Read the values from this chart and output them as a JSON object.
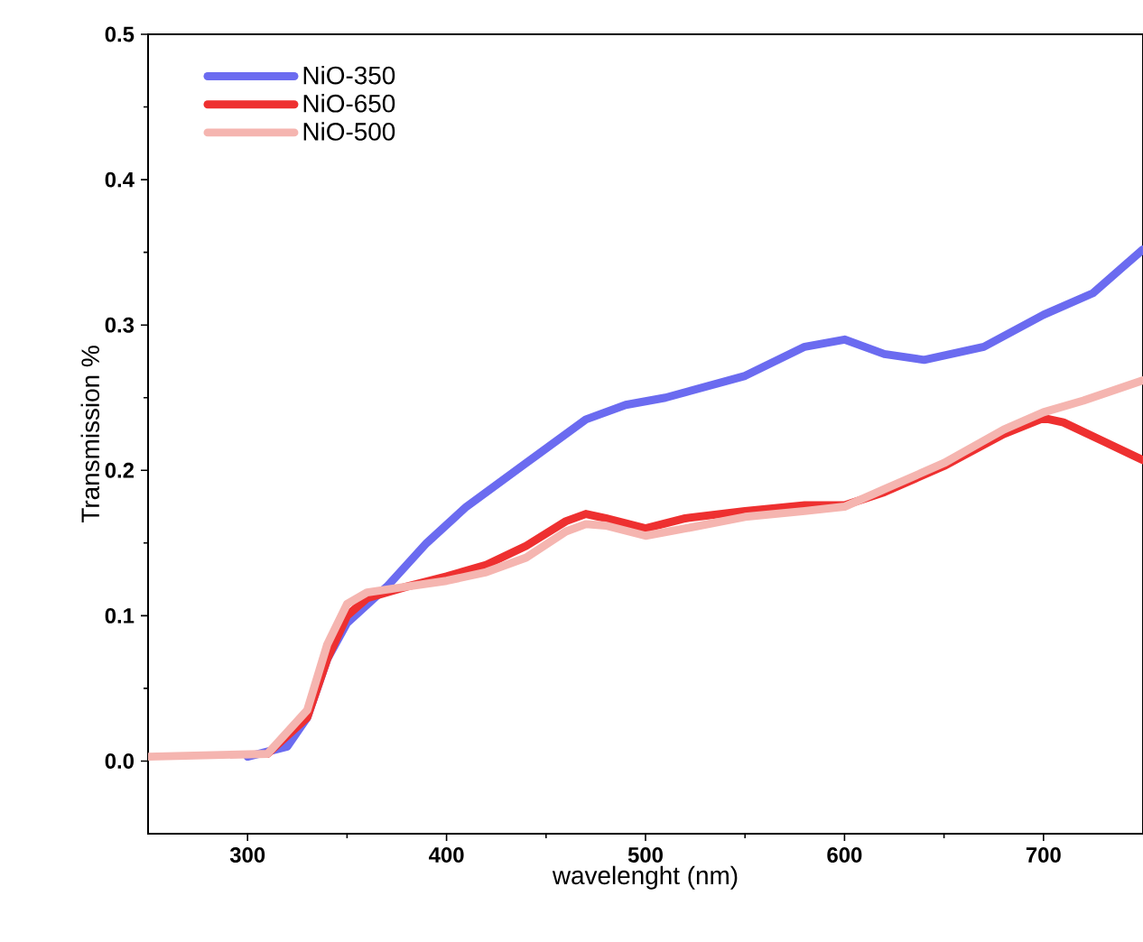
{
  "chart_data": {
    "type": "line",
    "xlabel": "wavelenght (nm)",
    "ylabel": "Transmission %",
    "xlim": [
      250,
      750
    ],
    "ylim": [
      -0.05,
      0.5
    ],
    "xticks": [
      300,
      400,
      500,
      600,
      700
    ],
    "yticks": [
      {
        "value": 0,
        "label": "0.0"
      },
      {
        "value": 0.1,
        "label": "0.1"
      },
      {
        "value": 0.2,
        "label": "0.2"
      },
      {
        "value": 0.3,
        "label": "0.3"
      },
      {
        "value": 0.4,
        "label": "0.4"
      },
      {
        "value": 0.5,
        "label": "0.5"
      }
    ],
    "legend": "top left",
    "grid": false,
    "marker": "none",
    "line_style": "solid",
    "series": [
      {
        "name": "NiO-350",
        "color": "#6b6bf0",
        "x": [
          300,
          320,
          330,
          340,
          350,
          370,
          390,
          410,
          440,
          470,
          490,
          510,
          550,
          580,
          600,
          620,
          640,
          670,
          700,
          725,
          740,
          750
        ],
        "values": [
          0.003,
          0.01,
          0.03,
          0.07,
          0.095,
          0.12,
          0.15,
          0.175,
          0.205,
          0.235,
          0.245,
          0.25,
          0.265,
          0.285,
          0.29,
          0.28,
          0.276,
          0.285,
          0.307,
          0.322,
          0.34,
          0.352
        ]
      },
      {
        "name": "NiO-650",
        "color": "#ee3030",
        "x": [
          310,
          330,
          340,
          350,
          360,
          380,
          400,
          420,
          440,
          460,
          470,
          480,
          500,
          520,
          550,
          580,
          600,
          620,
          650,
          680,
          700,
          710,
          730,
          750
        ],
        "values": [
          0.005,
          0.03,
          0.07,
          0.1,
          0.112,
          0.12,
          0.127,
          0.135,
          0.148,
          0.165,
          0.17,
          0.167,
          0.16,
          0.167,
          0.172,
          0.176,
          0.176,
          0.185,
          0.203,
          0.225,
          0.236,
          0.233,
          0.22,
          0.207
        ]
      },
      {
        "name": "NiO-500",
        "color": "#f5b5b0",
        "x": [
          250,
          310,
          330,
          340,
          350,
          360,
          380,
          400,
          420,
          440,
          460,
          470,
          480,
          500,
          520,
          550,
          580,
          600,
          620,
          650,
          680,
          700,
          720,
          750
        ],
        "values": [
          0.003,
          0.005,
          0.035,
          0.08,
          0.108,
          0.116,
          0.12,
          0.124,
          0.13,
          0.14,
          0.158,
          0.163,
          0.162,
          0.155,
          0.16,
          0.168,
          0.172,
          0.175,
          0.187,
          0.205,
          0.228,
          0.24,
          0.248,
          0.262
        ]
      }
    ]
  }
}
